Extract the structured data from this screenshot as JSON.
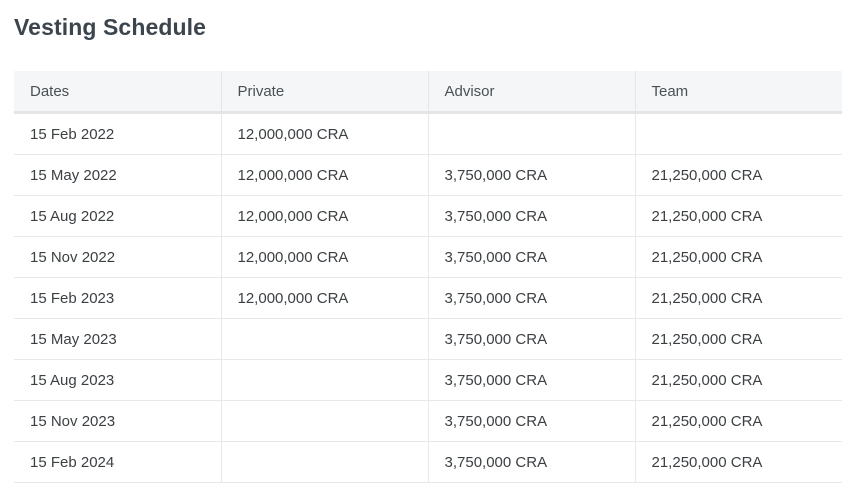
{
  "page": {
    "title": "Vesting Schedule"
  },
  "table": {
    "headers": {
      "dates": "Dates",
      "private": "Private",
      "advisor": "Advisor",
      "team": "Team"
    },
    "rows": [
      {
        "date": "15 Feb 2022",
        "private": "12,000,000 CRA",
        "advisor": "",
        "team": ""
      },
      {
        "date": "15 May 2022",
        "private": "12,000,000 CRA",
        "advisor": "3,750,000 CRA",
        "team": "21,250,000 CRA"
      },
      {
        "date": "15 Aug 2022",
        "private": "12,000,000 CRA",
        "advisor": "3,750,000 CRA",
        "team": "21,250,000 CRA"
      },
      {
        "date": "15 Nov 2022",
        "private": "12,000,000 CRA",
        "advisor": "3,750,000 CRA",
        "team": "21,250,000 CRA"
      },
      {
        "date": "15 Feb 2023",
        "private": "12,000,000 CRA",
        "advisor": "3,750,000 CRA",
        "team": "21,250,000 CRA"
      },
      {
        "date": "15 May 2023",
        "private": "",
        "advisor": "3,750,000 CRA",
        "team": "21,250,000 CRA"
      },
      {
        "date": "15 Aug 2023",
        "private": "",
        "advisor": "3,750,000 CRA",
        "team": "21,250,000 CRA"
      },
      {
        "date": "15 Nov 2023",
        "private": "",
        "advisor": "3,750,000 CRA",
        "team": "21,250,000 CRA"
      },
      {
        "date": "15 Feb 2024",
        "private": "",
        "advisor": "3,750,000 CRA",
        "team": "21,250,000 CRA"
      }
    ]
  }
}
